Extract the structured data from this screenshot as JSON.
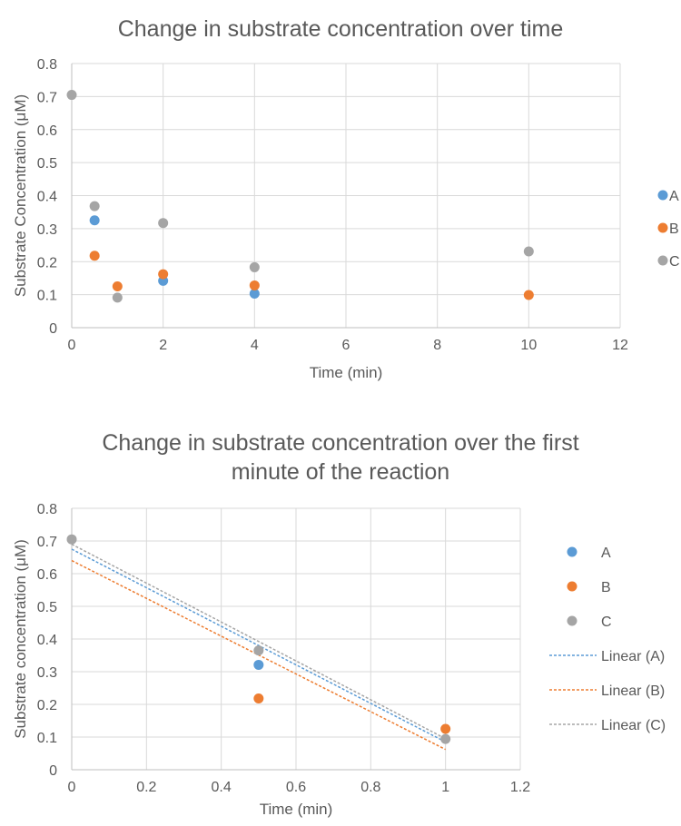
{
  "chart_data": [
    {
      "type": "scatter",
      "title": "Change in substrate concentration over time",
      "xlabel": "Time (min)",
      "ylabel": "Substrate Concentration (μM)",
      "xlim": [
        0,
        12
      ],
      "ylim": [
        0,
        0.8
      ],
      "xticks": [
        "0",
        "2",
        "4",
        "6",
        "8",
        "10",
        "12"
      ],
      "yticks": [
        "0",
        "0.1",
        "0.2",
        "0.3",
        "0.4",
        "0.5",
        "0.6",
        "0.7",
        "0.8"
      ],
      "grid": "vertical",
      "legend": "right",
      "series": [
        {
          "name": "A",
          "color": "#5B9BD5",
          "points": [
            [
              0.5,
              0.325
            ],
            [
              2,
              0.142
            ],
            [
              4,
              0.103
            ]
          ]
        },
        {
          "name": "B",
          "color": "#ED7D31",
          "points": [
            [
              0.5,
              0.218
            ],
            [
              1,
              0.125
            ],
            [
              2,
              0.162
            ],
            [
              4,
              0.128
            ],
            [
              10,
              0.099
            ]
          ]
        },
        {
          "name": "C",
          "color": "#A5A5A5",
          "points": [
            [
              0,
              0.705
            ],
            [
              0.5,
              0.368
            ],
            [
              1,
              0.091
            ],
            [
              2,
              0.317
            ],
            [
              4,
              0.183
            ],
            [
              10,
              0.231
            ]
          ]
        }
      ]
    },
    {
      "type": "scatter",
      "title": [
        "Change in substrate concentration over the first",
        "minute of the reaction"
      ],
      "xlabel": "Time (min)",
      "ylabel": "Substrate concentration (μM)",
      "xlim": [
        0,
        1.2
      ],
      "ylim": [
        0,
        0.8
      ],
      "xticks": [
        "0",
        "0.2",
        "0.4",
        "0.6",
        "0.8",
        "1",
        "1.2"
      ],
      "yticks": [
        "0",
        "0.1",
        "0.2",
        "0.3",
        "0.4",
        "0.5",
        "0.6",
        "0.7",
        "0.8"
      ],
      "grid": "vertical",
      "legend": "right",
      "series": [
        {
          "name": "A",
          "color": "#5B9BD5",
          "points": [
            [
              0.5,
              0.321
            ]
          ]
        },
        {
          "name": "B",
          "color": "#ED7D31",
          "points": [
            [
              0.5,
              0.218
            ],
            [
              1,
              0.125
            ]
          ]
        },
        {
          "name": "C",
          "color": "#A5A5A5",
          "points": [
            [
              0,
              0.705
            ],
            [
              0.5,
              0.365
            ],
            [
              1,
              0.094
            ]
          ]
        }
      ],
      "trendlines": [
        {
          "name": "Linear (A)",
          "color": "#5B9BD5",
          "from": [
            0,
            0.675
          ],
          "to": [
            1,
            0.085
          ]
        },
        {
          "name": "Linear (B)",
          "color": "#ED7D31",
          "from": [
            0,
            0.64
          ],
          "to": [
            1,
            0.062
          ]
        },
        {
          "name": "Linear (C)",
          "color": "#A5A5A5",
          "from": [
            0,
            0.69
          ],
          "to": [
            1,
            0.095
          ]
        }
      ]
    }
  ]
}
